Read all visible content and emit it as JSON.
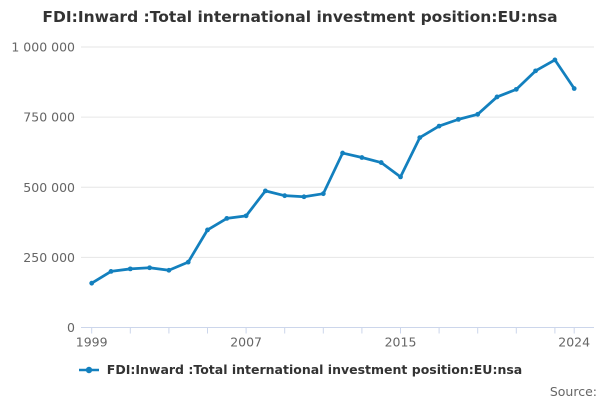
{
  "title": "FDI:Inward :Total international investment position:EU:nsa",
  "legend": {
    "label": "FDI:Inward :Total international investment position:EU:nsa",
    "position": "bottom"
  },
  "source_label": "Source:",
  "colors": {
    "line": "#1380be",
    "grid": "#e6e6e6",
    "axis_line": "#ccd6eb",
    "axis_text": "#666666",
    "text": "#333333"
  },
  "chart_data": {
    "type": "line",
    "title": "FDI:Inward :Total international investment position:EU:nsa",
    "series_name": "FDI:Inward :Total international investment position:EU:nsa",
    "x": [
      1999,
      2000,
      2001,
      2002,
      2003,
      2004,
      2005,
      2006,
      2007,
      2008,
      2009,
      2010,
      2011,
      2012,
      2013,
      2014,
      2015,
      2016,
      2017,
      2018,
      2019,
      2020,
      2021,
      2022,
      2023,
      2024
    ],
    "values": [
      158000,
      200000,
      209000,
      213000,
      204000,
      233000,
      348000,
      389000,
      398000,
      487000,
      470000,
      466000,
      477000,
      622000,
      606000,
      588000,
      537000,
      677000,
      718000,
      742000,
      760000,
      822000,
      849000,
      915000,
      954000,
      852000
    ],
    "xlabel": "",
    "ylabel": "",
    "ylim": [
      0,
      1000000
    ],
    "yticks": [
      0,
      250000,
      500000,
      750000,
      1000000
    ],
    "xtick_labels": [
      1999,
      2007,
      2015,
      2024
    ],
    "xtick_interval": 2,
    "grid": "horizontal",
    "markers": "circle",
    "legend_position": "bottom"
  }
}
